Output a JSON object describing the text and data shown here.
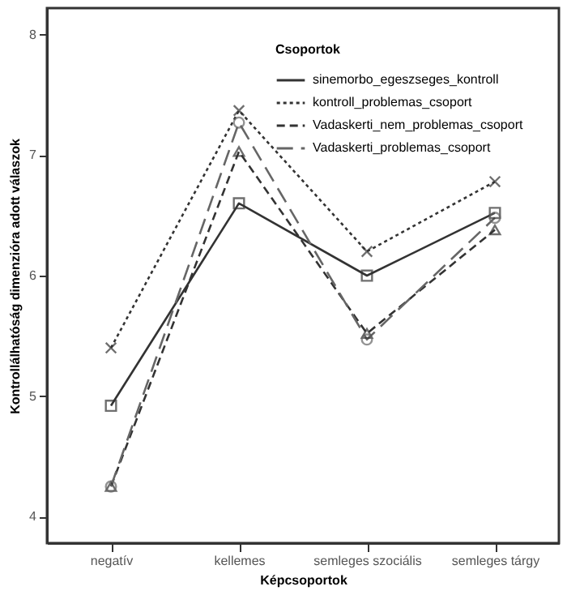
{
  "chart_data": {
    "type": "line",
    "xlabel": "Képcsoportok",
    "ylabel": "Kontrollálhatóság dimenzióra adott válaszok",
    "legend_title": "Csoportok",
    "categories": [
      "negatív",
      "kellemes",
      "semleges szociális",
      "semleges tárgy"
    ],
    "series": [
      {
        "name": "sinemorbo_egeszseges_kontroll",
        "color": "#333333",
        "line_style": "solid",
        "marker": "square",
        "values": [
          4.92,
          6.6,
          6.0,
          6.52
        ]
      },
      {
        "name": "kontroll_problemas_csoport",
        "color": "#333333",
        "line_style": "dotted",
        "marker": "cross",
        "values": [
          5.4,
          7.37,
          6.2,
          6.78
        ]
      },
      {
        "name": "Vadaskerti_nem_problemas_csoport",
        "color": "#333333",
        "line_style": "dashed",
        "marker": "triangle",
        "values": [
          4.25,
          7.03,
          5.52,
          6.38
        ]
      },
      {
        "name": "Vadaskerti_problemas_csoport",
        "color": "#666666",
        "line_style": "longdash",
        "marker": "circle",
        "values": [
          4.25,
          7.27,
          5.47,
          6.48
        ]
      }
    ],
    "ylim": [
      3.78,
      8.22
    ],
    "yticks": [
      4,
      5,
      6,
      7,
      8
    ],
    "grid": false,
    "legend": "top right"
  }
}
